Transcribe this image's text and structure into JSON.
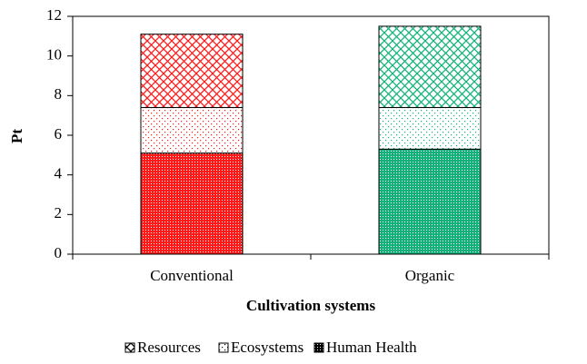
{
  "chart_data": {
    "type": "stacked_bar",
    "y_label": "Pt",
    "x_label": "Cultivation systems",
    "categories": [
      "Conventional",
      "Organic"
    ],
    "category_colors": [
      "#ff1a1a",
      "#14b27a"
    ],
    "series": [
      {
        "name": "Resources",
        "pattern": "crosshatch",
        "values": [
          3.7,
          4.1
        ]
      },
      {
        "name": "Ecosystems",
        "pattern": "dots",
        "values": [
          2.3,
          2.1
        ]
      },
      {
        "name": "Human Health",
        "pattern": "dense",
        "values": [
          5.1,
          5.3
        ]
      }
    ],
    "stack_order": "last-first",
    "legend_color": "#000000",
    "legend": "bottom",
    "ylim": [
      0,
      12
    ],
    "yticks": [
      0,
      2,
      4,
      6,
      8,
      10,
      12
    ],
    "grid": false
  }
}
